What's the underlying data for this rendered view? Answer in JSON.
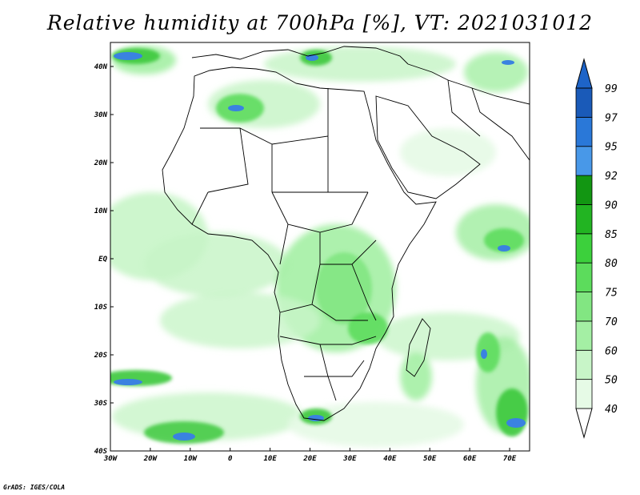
{
  "title": "Relative humidity at 700hPa [%], VT: 2021031012",
  "credit": "GrADS: IGES/COLA",
  "map": {
    "lon_range": [
      -30,
      75
    ],
    "lat_range": [
      -40,
      45
    ],
    "lon_ticks": [
      {
        "value": -30,
        "label": "30W"
      },
      {
        "value": -20,
        "label": "20W"
      },
      {
        "value": -10,
        "label": "10W"
      },
      {
        "value": 0,
        "label": "0"
      },
      {
        "value": 10,
        "label": "10E"
      },
      {
        "value": 20,
        "label": "20E"
      },
      {
        "value": 30,
        "label": "30E"
      },
      {
        "value": 40,
        "label": "40E"
      },
      {
        "value": 50,
        "label": "50E"
      },
      {
        "value": 60,
        "label": "60E"
      },
      {
        "value": 70,
        "label": "70E"
      }
    ],
    "lat_ticks": [
      {
        "value": 40,
        "label": "40N"
      },
      {
        "value": 30,
        "label": "30N"
      },
      {
        "value": 20,
        "label": "20N"
      },
      {
        "value": 10,
        "label": "10N"
      },
      {
        "value": 0,
        "label": "EQ"
      },
      {
        "value": -10,
        "label": "10S"
      },
      {
        "value": -20,
        "label": "20S"
      },
      {
        "value": -30,
        "label": "30S"
      },
      {
        "value": -40,
        "label": "40S"
      }
    ]
  },
  "colorbar": {
    "levels": [
      "40",
      "50",
      "60",
      "70",
      "75",
      "80",
      "85",
      "90",
      "92",
      "95",
      "97",
      "99"
    ],
    "colors": [
      "#ffffff",
      "#e6fae6",
      "#c8f5c8",
      "#a4efa4",
      "#82e682",
      "#5cdc5c",
      "#3cd03c",
      "#22b422",
      "#129612",
      "#4898e8",
      "#2a78d8",
      "#1a5ab8",
      "#1e64c8"
    ]
  },
  "colors": {
    "high_green": "#3cc83c",
    "mid_green": "#82e682",
    "low_green": "#c8f5c8",
    "blue": "#3a82e0",
    "border": "#000000"
  }
}
